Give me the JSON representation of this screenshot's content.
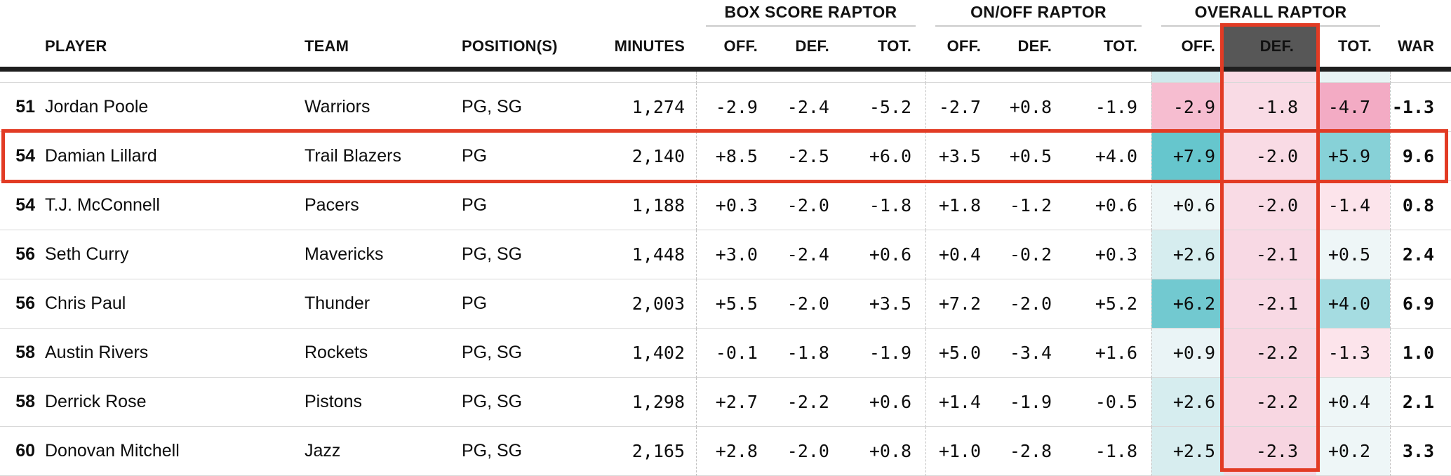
{
  "colors": {
    "accent_red": "#e23b24",
    "def_header_bg": "#575757",
    "header_rule": "#1f1f1f",
    "row_rule": "#d9d9d9",
    "spacer_overall": [
      "#cfe9ec",
      "#f9dbe5",
      "#e8f3f4"
    ]
  },
  "chart_data": {
    "type": "table",
    "group_headers": [
      {
        "label": "BOX SCORE RAPTOR"
      },
      {
        "label": "ON/OFF RAPTOR"
      },
      {
        "label": "OVERALL RAPTOR"
      }
    ],
    "columns": {
      "rank": "",
      "player": "PLAYER",
      "team": "TEAM",
      "positions": "POSITION(S)",
      "minutes": "MINUTES",
      "box": [
        "OFF.",
        "DEF.",
        "TOT."
      ],
      "onoff": [
        "OFF.",
        "DEF.",
        "TOT."
      ],
      "overall": [
        "OFF.",
        "DEF.",
        "TOT."
      ],
      "war": "WAR"
    },
    "highlight": {
      "row_player": "Damian Lillard",
      "column": "OVERALL RAPTOR DEF."
    },
    "rows": [
      {
        "rank": "51",
        "player": "Jordan Poole",
        "team": "Warriors",
        "positions": "PG, SG",
        "minutes": "1,274",
        "box": [
          "-2.9",
          "-2.4",
          "-5.2"
        ],
        "onoff": [
          "-2.7",
          "+0.8",
          "-1.9"
        ],
        "overall": [
          "-2.9",
          "-1.8",
          "-4.7"
        ],
        "overall_colors": [
          "#f6bdd0",
          "#f9dbe5",
          "#f3abc4"
        ],
        "war": "-1.3",
        "highlighted": false
      },
      {
        "rank": "54",
        "player": "Damian Lillard",
        "team": "Trail Blazers",
        "positions": "PG",
        "minutes": "2,140",
        "box": [
          "+8.5",
          "-2.5",
          "+6.0"
        ],
        "onoff": [
          "+3.5",
          "+0.5",
          "+4.0"
        ],
        "overall": [
          "+7.9",
          "-2.0",
          "+5.9"
        ],
        "overall_colors": [
          "#66c6cd",
          "#f9dbe5",
          "#87d1d7"
        ],
        "war": "9.6",
        "highlighted": true
      },
      {
        "rank": "54",
        "player": "T.J. McConnell",
        "team": "Pacers",
        "positions": "PG",
        "minutes": "1,188",
        "box": [
          "+0.3",
          "-2.0",
          "-1.8"
        ],
        "onoff": [
          "+1.8",
          "-1.2",
          "+0.6"
        ],
        "overall": [
          "+0.6",
          "-2.0",
          "-1.4"
        ],
        "overall_colors": [
          "#edf6f7",
          "#f9dbe5",
          "#fce4eb"
        ],
        "war": "0.8",
        "highlighted": false
      },
      {
        "rank": "56",
        "player": "Seth Curry",
        "team": "Mavericks",
        "positions": "PG, SG",
        "minutes": "1,448",
        "box": [
          "+3.0",
          "-2.4",
          "+0.6"
        ],
        "onoff": [
          "+0.4",
          "-0.2",
          "+0.3"
        ],
        "overall": [
          "+2.6",
          "-2.1",
          "+0.5"
        ],
        "overall_colors": [
          "#d6edef",
          "#f8d9e4",
          "#eef6f7"
        ],
        "war": "2.4",
        "highlighted": false
      },
      {
        "rank": "56",
        "player": "Chris Paul",
        "team": "Thunder",
        "positions": "PG",
        "minutes": "2,003",
        "box": [
          "+5.5",
          "-2.0",
          "+3.5"
        ],
        "onoff": [
          "+7.2",
          "-2.0",
          "+5.2"
        ],
        "overall": [
          "+6.2",
          "-2.1",
          "+4.0"
        ],
        "overall_colors": [
          "#72c9d0",
          "#f8d9e4",
          "#a5dce1"
        ],
        "war": "6.9",
        "highlighted": false
      },
      {
        "rank": "58",
        "player": "Austin Rivers",
        "team": "Rockets",
        "positions": "PG, SG",
        "minutes": "1,402",
        "box": [
          "-0.1",
          "-1.8",
          "-1.9"
        ],
        "onoff": [
          "+5.0",
          "-3.4",
          "+1.6"
        ],
        "overall": [
          "+0.9",
          "-2.2",
          "-1.3"
        ],
        "overall_colors": [
          "#eaf4f6",
          "#f8d7e2",
          "#fce4eb"
        ],
        "war": "1.0",
        "highlighted": false
      },
      {
        "rank": "58",
        "player": "Derrick Rose",
        "team": "Pistons",
        "positions": "PG, SG",
        "minutes": "1,298",
        "box": [
          "+2.7",
          "-2.2",
          "+0.6"
        ],
        "onoff": [
          "+1.4",
          "-1.9",
          "-0.5"
        ],
        "overall": [
          "+2.6",
          "-2.2",
          "+0.4"
        ],
        "overall_colors": [
          "#d6edef",
          "#f8d7e2",
          "#eef6f7"
        ],
        "war": "2.1",
        "highlighted": false
      },
      {
        "rank": "60",
        "player": "Donovan Mitchell",
        "team": "Jazz",
        "positions": "PG, SG",
        "minutes": "2,165",
        "box": [
          "+2.8",
          "-2.0",
          "+0.8"
        ],
        "onoff": [
          "+1.0",
          "-2.8",
          "-1.8"
        ],
        "overall": [
          "+2.5",
          "-2.3",
          "+0.2"
        ],
        "overall_colors": [
          "#d7edef",
          "#f7d5e1",
          "#eef6f7"
        ],
        "war": "3.3",
        "highlighted": false
      }
    ]
  }
}
